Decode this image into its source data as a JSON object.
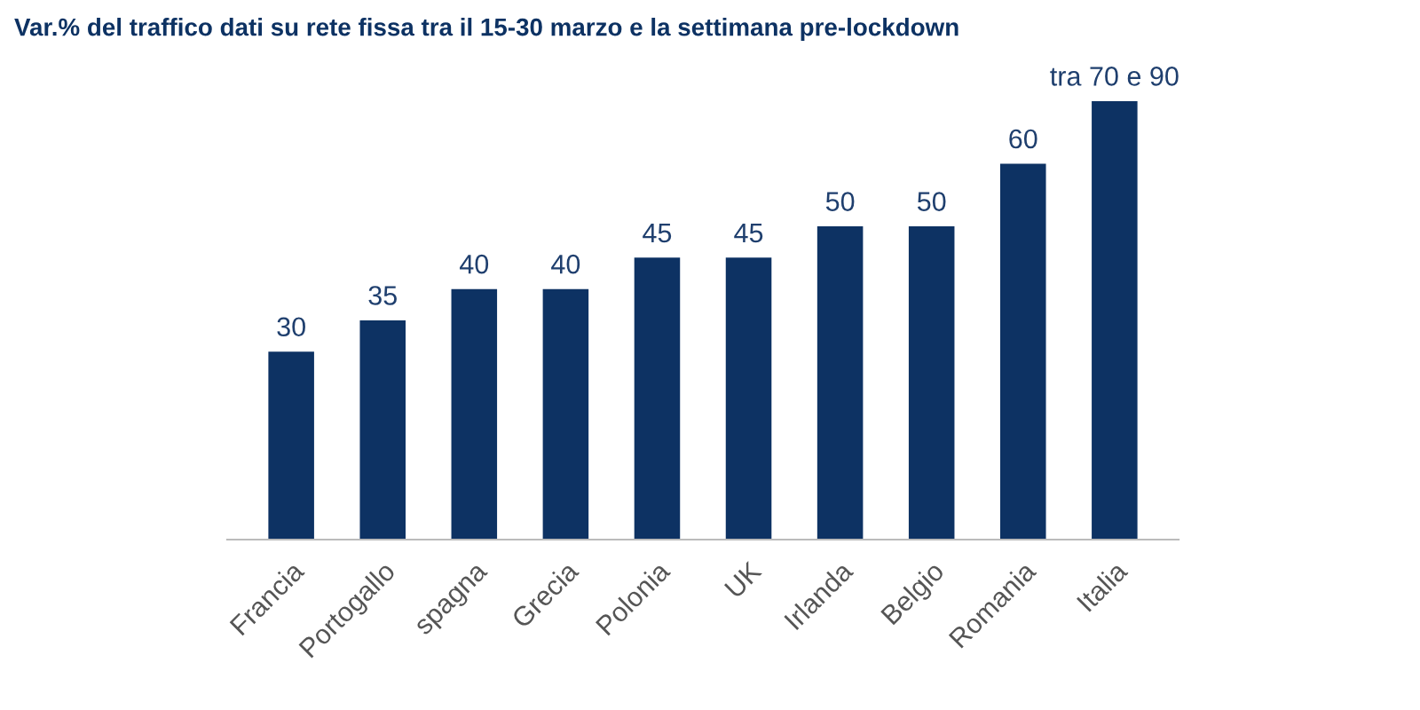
{
  "chart_data": {
    "type": "bar",
    "title": "Var.% del traffico dati su rete fissa tra il 15-30 marzo e la settimana pre-lockdown",
    "categories": [
      "Francia",
      "Portogallo",
      "spagna",
      "Grecia",
      "Polonia",
      "UK",
      "Irlanda",
      "Belgio",
      "Romania",
      "Italia"
    ],
    "values": [
      30,
      35,
      40,
      40,
      45,
      45,
      50,
      50,
      60,
      70
    ],
    "value_labels": [
      "30",
      "35",
      "40",
      "40",
      "45",
      "45",
      "50",
      "50",
      "60",
      "tra 70 e 90"
    ],
    "color": "#0d3263",
    "grid": false,
    "legend": false
  }
}
